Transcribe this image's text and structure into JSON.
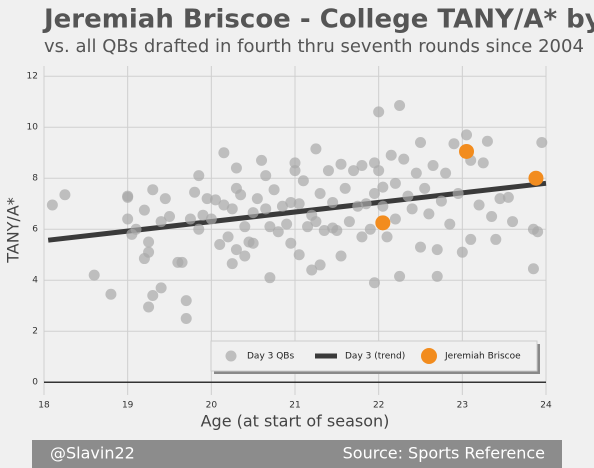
{
  "chart_data": {
    "type": "scatter",
    "title": "Jeremiah Briscoe - College TANY/A* by Age",
    "subtitle": "vs. all QBs drafted in fourth thru seventh rounds since 2004",
    "x_label": "Age (at start of season)",
    "y_label": "TANY/A*",
    "footer_left": "@Slavin22",
    "footer_right": "Source: Sports Reference",
    "xlim": [
      18,
      24
    ],
    "ylim": [
      -0.5,
      12.4
    ],
    "xticks": [
      18,
      19,
      20,
      21,
      22,
      23,
      24
    ],
    "yticks": [
      0,
      2,
      4,
      6,
      8,
      10,
      12
    ],
    "grid": true,
    "legend": "lower right",
    "series": [
      {
        "name": "Day 3 QBs",
        "color": "#a8a8a8",
        "mark": "point",
        "x": [
          18.1,
          18.25,
          18.6,
          18.8,
          19.0,
          19.0,
          19.0,
          19.05,
          19.1,
          19.2,
          19.2,
          19.25,
          19.25,
          19.3,
          19.3,
          19.25,
          19.4,
          19.4,
          19.45,
          19.5,
          19.6,
          19.65,
          19.7,
          19.7,
          19.75,
          19.8,
          19.85,
          19.85,
          19.9,
          19.95,
          20.0,
          20.05,
          20.1,
          20.15,
          20.15,
          20.2,
          20.25,
          20.25,
          20.3,
          20.3,
          20.3,
          20.35,
          20.4,
          20.4,
          20.45,
          20.5,
          20.5,
          20.55,
          20.6,
          20.65,
          20.65,
          20.7,
          20.7,
          20.75,
          20.8,
          20.85,
          20.9,
          20.95,
          20.95,
          21.0,
          21.0,
          21.05,
          21.05,
          21.1,
          21.15,
          21.2,
          21.2,
          21.25,
          21.25,
          21.3,
          21.3,
          21.35,
          21.4,
          21.45,
          21.45,
          21.5,
          21.55,
          21.55,
          21.6,
          21.65,
          21.7,
          21.75,
          21.8,
          21.8,
          21.85,
          21.9,
          21.95,
          21.95,
          21.95,
          22.0,
          22.0,
          22.05,
          22.05,
          22.1,
          22.15,
          22.2,
          22.2,
          22.25,
          22.25,
          22.3,
          22.35,
          22.4,
          22.45,
          22.5,
          22.5,
          22.55,
          22.6,
          22.65,
          22.7,
          22.7,
          22.75,
          22.8,
          22.85,
          22.9,
          22.95,
          23.0,
          23.05,
          23.1,
          23.1,
          23.2,
          23.25,
          23.3,
          23.35,
          23.4,
          23.45,
          23.55,
          23.6,
          23.85,
          23.85,
          23.95,
          23.9
        ],
        "values": [
          6.95,
          7.35,
          4.2,
          3.45,
          7.3,
          7.25,
          6.4,
          5.8,
          6.0,
          6.75,
          4.85,
          5.5,
          5.1,
          7.55,
          3.4,
          2.95,
          3.7,
          6.3,
          7.2,
          6.5,
          4.7,
          4.7,
          3.2,
          2.5,
          6.4,
          7.45,
          6.0,
          8.1,
          6.55,
          7.2,
          6.4,
          7.15,
          5.4,
          9.0,
          6.95,
          5.7,
          4.65,
          6.8,
          7.6,
          8.4,
          5.2,
          7.35,
          6.1,
          4.95,
          5.5,
          6.65,
          5.45,
          7.2,
          8.7,
          8.1,
          6.8,
          6.1,
          4.1,
          7.55,
          5.9,
          6.9,
          6.2,
          7.05,
          5.45,
          8.6,
          8.3,
          7.0,
          5.0,
          7.9,
          6.1,
          6.55,
          4.4,
          9.15,
          6.3,
          7.4,
          4.6,
          5.95,
          8.3,
          7.05,
          6.05,
          5.95,
          8.55,
          4.95,
          7.6,
          6.3,
          8.3,
          6.9,
          8.5,
          5.7,
          7.0,
          6.0,
          8.6,
          7.4,
          3.9,
          10.6,
          8.3,
          7.65,
          6.9,
          5.7,
          8.9,
          7.8,
          6.4,
          10.85,
          4.15,
          8.75,
          7.3,
          6.8,
          8.2,
          9.4,
          5.3,
          7.6,
          6.6,
          8.5,
          5.2,
          4.15,
          7.1,
          8.2,
          6.2,
          9.35,
          7.4,
          5.1,
          9.7,
          8.7,
          5.6,
          6.95,
          8.6,
          9.45,
          6.5,
          5.6,
          7.2,
          7.25,
          6.3,
          6.0,
          4.45,
          9.4,
          5.9
        ]
      },
      {
        "name": "Day 3 (trend)",
        "color": "#3a3a3a",
        "mark": "line",
        "x": [
          18.05,
          24
        ],
        "values": [
          5.57,
          7.8
        ]
      },
      {
        "name": "Jeremiah Briscoe",
        "color": "#f28c1e",
        "mark": "point",
        "x": [
          22.05,
          23.05,
          23.88
        ],
        "values": [
          6.25,
          9.05,
          8.0
        ]
      }
    ]
  }
}
